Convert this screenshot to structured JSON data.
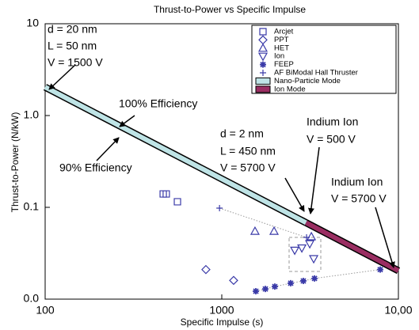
{
  "chart_data": {
    "type": "scatter",
    "title": "Thrust-to-Power vs Specific Impulse",
    "xlabel": "Specific Impulse (s)",
    "ylabel": "Thrust-to-Power (N/kW)",
    "xscale": "log",
    "yscale": "log",
    "xlim": [
      100,
      10000
    ],
    "ylim": [
      0.01,
      10
    ],
    "xticks": [
      100,
      1000,
      {
        "value": 10000,
        "label": "10,00"
      }
    ],
    "yticks": [
      10,
      {
        "value": 1,
        "label": "1.0"
      },
      0.1,
      {
        "value": 0.01,
        "label": "0.0"
      }
    ],
    "legend": "upper right",
    "series": [
      {
        "name": "Arcjet",
        "color": "#3a3aa8",
        "marker": "square",
        "x": [
          466,
          485,
          561
        ],
        "values": [
          0.14,
          0.14,
          0.115
        ]
      },
      {
        "name": "PPT",
        "color": "#3a3aa8",
        "marker": "diamond",
        "x": [
          813,
          1167
        ],
        "values": [
          0.021,
          0.016
        ]
      },
      {
        "name": "HET",
        "color": "#3a3aa8",
        "marker": "triangle-up",
        "x": [
          1542,
          1977,
          3215
        ],
        "values": [
          0.055,
          0.055,
          0.048
        ]
      },
      {
        "name": "Ion",
        "color": "#3a3aa8",
        "marker": "triangle-down",
        "x": [
          2588,
          2840,
          3148,
          3314
        ],
        "values": [
          0.034,
          0.036,
          0.04,
          0.0275
        ]
      },
      {
        "name": "FEEP",
        "color": "#3a3aa8",
        "marker": "star",
        "linestyle": "dotted",
        "x": [
          1559,
          1765,
          1997,
          2455,
          2896,
          3350,
          7890
        ],
        "values": [
          0.0122,
          0.0129,
          0.0137,
          0.0149,
          0.0158,
          0.0168,
          0.021
        ]
      },
      {
        "name": "AF BiModal Hall Thruster",
        "color": "#3a3aa8",
        "marker": "plus",
        "linestyle": "dotted",
        "x": [
          971,
          3020
        ],
        "values": [
          0.098,
          0.047
        ]
      },
      {
        "name": "Nano-Particle Mode",
        "color": "#bfe4e6",
        "marker": "band",
        "x": [
          100,
          3000
        ],
        "values": [
          2.04,
          0.068
        ]
      },
      {
        "name": "Ion Mode",
        "color": "#9a2e62",
        "marker": "band",
        "x": [
          3000,
          10000
        ],
        "values": [
          0.068,
          0.0204
        ]
      }
    ],
    "annotations": [
      "d = 20 nm",
      "L = 50 nm",
      "V = 1500 V",
      "100% Efficiency",
      "90% Efficiency",
      "d = 2 nm",
      "L = 450 nm",
      "V = 5700 V",
      "Indium Ion",
      "V = 500 V",
      "Indium Ion",
      "V = 5700 V"
    ]
  }
}
